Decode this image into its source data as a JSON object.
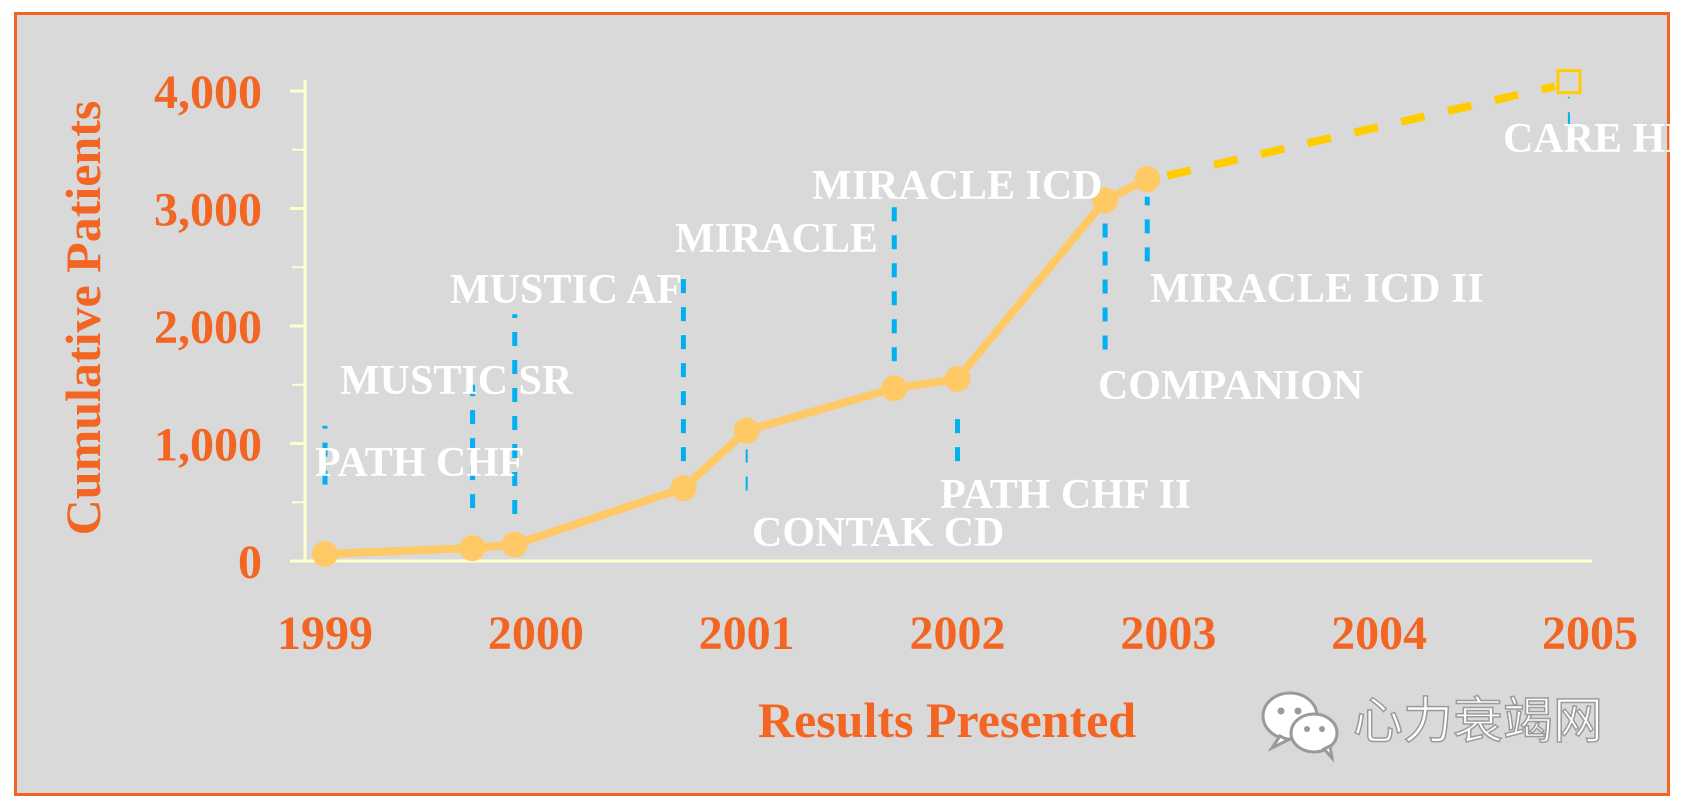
{
  "chart_data": {
    "type": "line",
    "ylabel": "Cumulative Patients",
    "xlabel": "Results Presented",
    "ylim": [
      0,
      4000
    ],
    "xlim": [
      1999,
      2005
    ],
    "y_ticks": [
      "0",
      "1,000",
      "2,000",
      "3,000",
      "4,000"
    ],
    "y_tick_values": [
      0,
      1000,
      2000,
      3000,
      4000
    ],
    "x_ticks": [
      "1999",
      "2000",
      "2001",
      "2002",
      "2003",
      "2004",
      "2005"
    ],
    "x_tick_values": [
      1999,
      2000,
      2001,
      2002,
      2003,
      2004,
      2005
    ],
    "series": [
      {
        "name": "Cumulative patients",
        "points": [
          {
            "x": 1999.0,
            "y": 60,
            "label": "PATH CHF"
          },
          {
            "x": 1999.7,
            "y": 110,
            "label": "MUSTIC SR"
          },
          {
            "x": 1999.9,
            "y": 140,
            "label": "MUSTIC AF"
          },
          {
            "x": 2000.7,
            "y": 620,
            "label": "MIRACLE"
          },
          {
            "x": 2001.0,
            "y": 1110,
            "label": "CONTAK CD"
          },
          {
            "x": 2001.7,
            "y": 1470,
            "label": "MIRACLE ICD"
          },
          {
            "x": 2002.0,
            "y": 1550,
            "label": "PATH CHF II"
          },
          {
            "x": 2002.7,
            "y": 3070,
            "label": "COMPANION"
          },
          {
            "x": 2002.9,
            "y": 3250,
            "label": "MIRACLE ICD II"
          }
        ]
      },
      {
        "name": "Projected",
        "style": "dashed",
        "points": [
          {
            "x": 2002.9,
            "y": 3250
          },
          {
            "x": 2004.9,
            "y": 4080,
            "label": "CARE HF"
          }
        ]
      }
    ],
    "colors": {
      "line": "#ffc966",
      "projection": "#ffcc00",
      "leader": "#00b0f0",
      "axis": "#ffffcc",
      "text_orange": "#f26522",
      "annotation": "#ffffff"
    }
  },
  "watermark": {
    "text": "心力衰竭网",
    "icon": "wechat-icon"
  }
}
